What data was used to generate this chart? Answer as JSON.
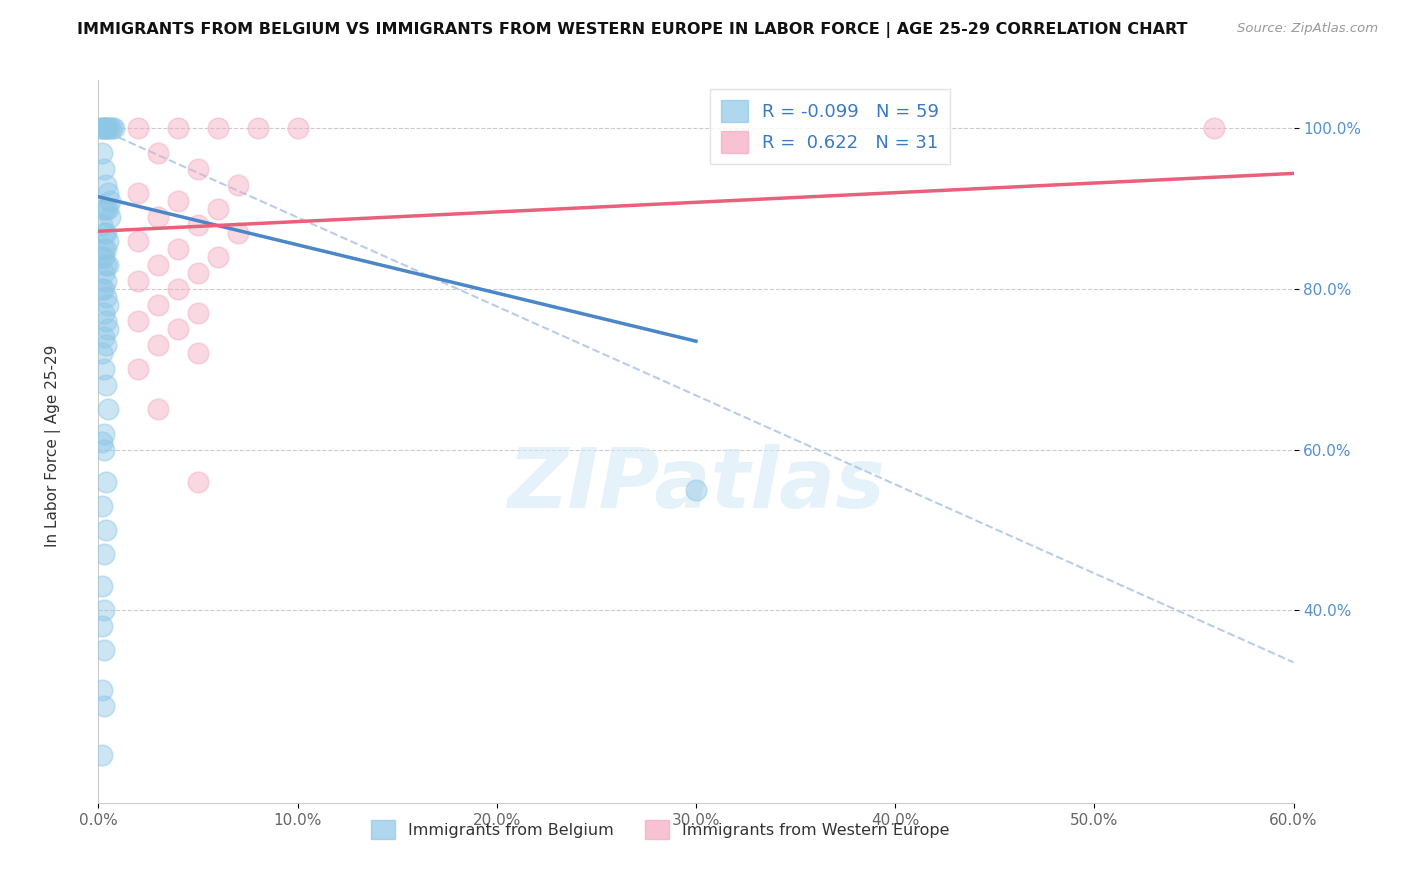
{
  "title": "IMMIGRANTS FROM BELGIUM VS IMMIGRANTS FROM WESTERN EUROPE IN LABOR FORCE | AGE 25-29 CORRELATION CHART",
  "source": "Source: ZipAtlas.com",
  "ylabel": "In Labor Force | Age 25-29",
  "legend_label1": "Immigrants from Belgium",
  "legend_label2": "Immigrants from Western Europe",
  "R1": -0.099,
  "N1": 59,
  "R2": 0.622,
  "N2": 31,
  "color_blue": "#8ec6e6",
  "color_pink": "#f4a9be",
  "color_blue_line": "#4a86c8",
  "color_pink_line": "#e8607a",
  "color_dashed": "#b0c8e8",
  "xlim": [
    0.0,
    0.6
  ],
  "ylim": [
    0.16,
    1.06
  ],
  "xtick_labels": [
    "0.0%",
    "10.0%",
    "20.0%",
    "30.0%",
    "40.0%",
    "50.0%",
    "60.0%"
  ],
  "xtick_vals": [
    0.0,
    0.1,
    0.2,
    0.3,
    0.4,
    0.5,
    0.6
  ],
  "ytick_labels": [
    "100.0%",
    "80.0%",
    "60.0%",
    "40.0%"
  ],
  "ytick_vals": [
    1.0,
    0.8,
    0.6,
    0.4
  ],
  "blue_line": {
    "x0": 0.0,
    "x1": 0.3,
    "y0": 0.915,
    "y1": 0.735
  },
  "pink_line": {
    "x0": 0.0,
    "x1": 0.6,
    "y0": 0.872,
    "y1": 0.944
  },
  "dashed_line": {
    "x0": 0.0,
    "x1": 0.6,
    "y0": 1.0,
    "y1": 0.335
  },
  "blue_points": [
    [
      0.001,
      1.0
    ],
    [
      0.002,
      1.0
    ],
    [
      0.003,
      1.0
    ],
    [
      0.004,
      1.0
    ],
    [
      0.005,
      1.0
    ],
    [
      0.006,
      1.0
    ],
    [
      0.007,
      1.0
    ],
    [
      0.008,
      1.0
    ],
    [
      0.003,
      1.0
    ],
    [
      0.004,
      1.0
    ],
    [
      0.002,
      0.97
    ],
    [
      0.003,
      0.95
    ],
    [
      0.004,
      0.93
    ],
    [
      0.005,
      0.92
    ],
    [
      0.006,
      0.91
    ],
    [
      0.003,
      0.9
    ],
    [
      0.004,
      0.9
    ],
    [
      0.005,
      0.9
    ],
    [
      0.006,
      0.89
    ],
    [
      0.002,
      0.88
    ],
    [
      0.003,
      0.87
    ],
    [
      0.004,
      0.87
    ],
    [
      0.005,
      0.86
    ],
    [
      0.003,
      0.85
    ],
    [
      0.004,
      0.85
    ],
    [
      0.002,
      0.84
    ],
    [
      0.003,
      0.84
    ],
    [
      0.004,
      0.83
    ],
    [
      0.005,
      0.83
    ],
    [
      0.003,
      0.82
    ],
    [
      0.004,
      0.81
    ],
    [
      0.002,
      0.8
    ],
    [
      0.003,
      0.8
    ],
    [
      0.004,
      0.79
    ],
    [
      0.005,
      0.78
    ],
    [
      0.003,
      0.77
    ],
    [
      0.004,
      0.76
    ],
    [
      0.005,
      0.75
    ],
    [
      0.003,
      0.74
    ],
    [
      0.004,
      0.73
    ],
    [
      0.002,
      0.72
    ],
    [
      0.003,
      0.7
    ],
    [
      0.004,
      0.68
    ],
    [
      0.005,
      0.65
    ],
    [
      0.003,
      0.62
    ],
    [
      0.002,
      0.61
    ],
    [
      0.003,
      0.6
    ],
    [
      0.004,
      0.56
    ],
    [
      0.002,
      0.53
    ],
    [
      0.004,
      0.5
    ],
    [
      0.003,
      0.47
    ],
    [
      0.002,
      0.43
    ],
    [
      0.003,
      0.4
    ],
    [
      0.002,
      0.38
    ],
    [
      0.003,
      0.35
    ],
    [
      0.002,
      0.3
    ],
    [
      0.003,
      0.28
    ],
    [
      0.002,
      0.22
    ],
    [
      0.3,
      0.55
    ]
  ],
  "pink_points": [
    [
      0.02,
      1.0
    ],
    [
      0.04,
      1.0
    ],
    [
      0.06,
      1.0
    ],
    [
      0.08,
      1.0
    ],
    [
      0.1,
      1.0
    ],
    [
      0.56,
      1.0
    ],
    [
      0.03,
      0.97
    ],
    [
      0.05,
      0.95
    ],
    [
      0.07,
      0.93
    ],
    [
      0.02,
      0.92
    ],
    [
      0.04,
      0.91
    ],
    [
      0.06,
      0.9
    ],
    [
      0.03,
      0.89
    ],
    [
      0.05,
      0.88
    ],
    [
      0.07,
      0.87
    ],
    [
      0.02,
      0.86
    ],
    [
      0.04,
      0.85
    ],
    [
      0.06,
      0.84
    ],
    [
      0.03,
      0.83
    ],
    [
      0.05,
      0.82
    ],
    [
      0.02,
      0.81
    ],
    [
      0.04,
      0.8
    ],
    [
      0.03,
      0.78
    ],
    [
      0.05,
      0.77
    ],
    [
      0.02,
      0.76
    ],
    [
      0.04,
      0.75
    ],
    [
      0.03,
      0.73
    ],
    [
      0.05,
      0.72
    ],
    [
      0.02,
      0.7
    ],
    [
      0.03,
      0.65
    ],
    [
      0.05,
      0.56
    ]
  ],
  "watermark_text": "ZIPatlas",
  "background_color": "#ffffff"
}
